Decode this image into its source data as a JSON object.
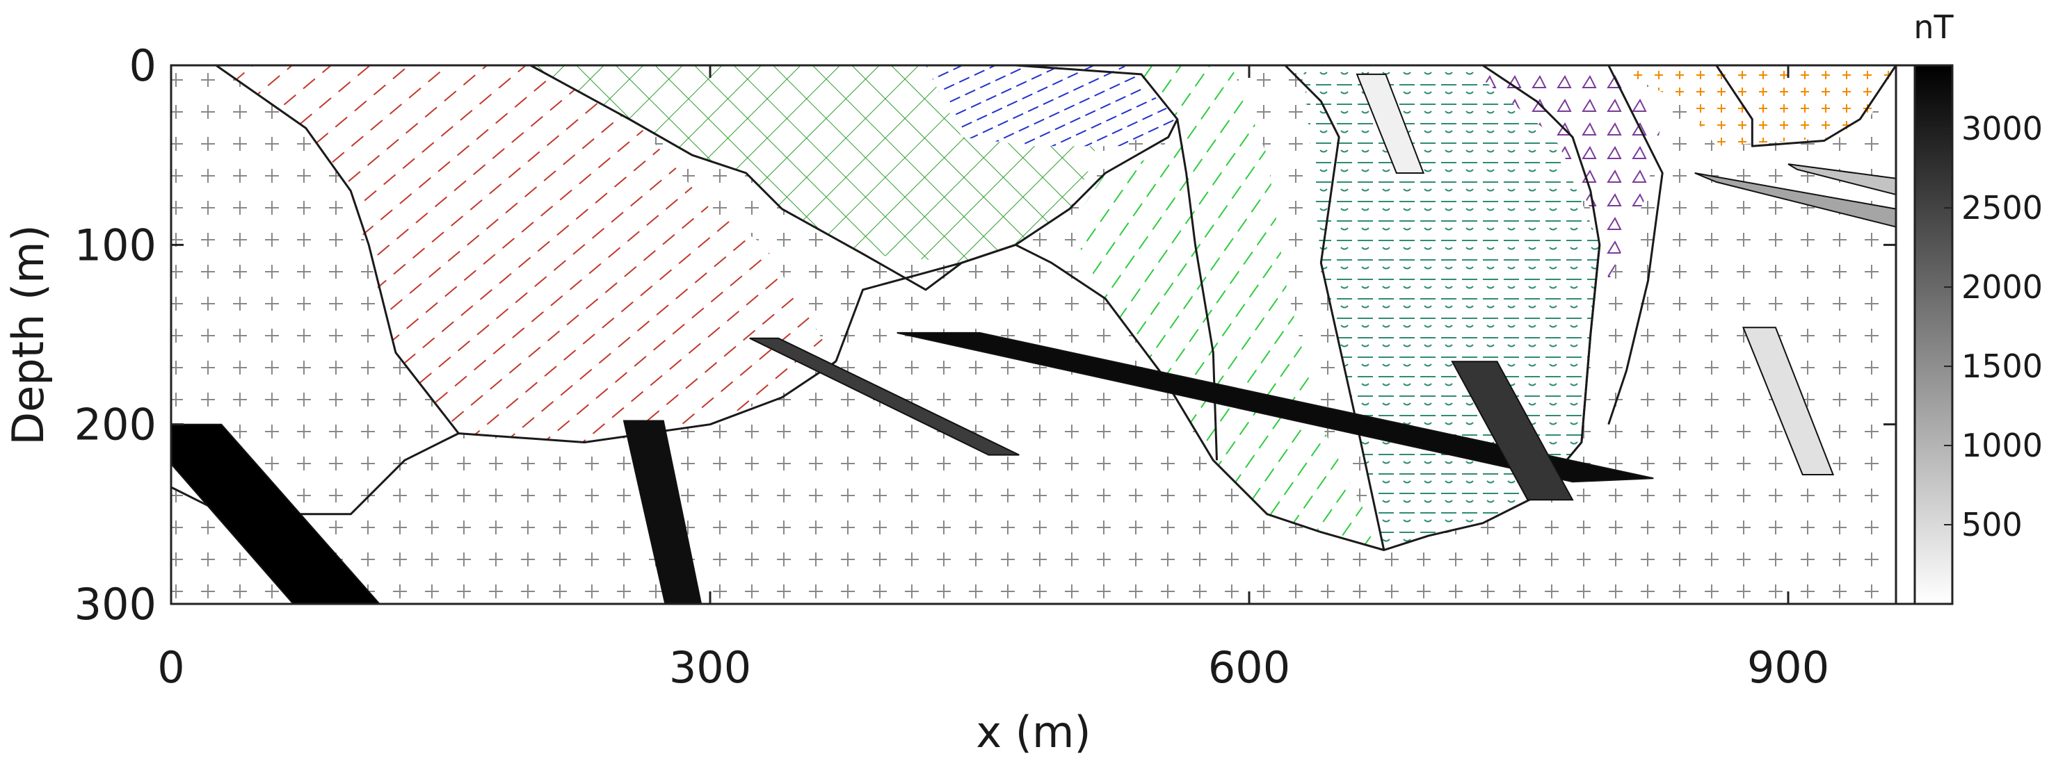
{
  "chart_data": {
    "type": "cross-section",
    "xlabel": "x (m)",
    "ylabel": "Depth (m)",
    "xlim": [
      0,
      960
    ],
    "ylim": [
      0,
      300
    ],
    "y_inverted": true,
    "x_ticks": [
      "0",
      "300",
      "600",
      "900"
    ],
    "y_ticks": [
      "0",
      "100",
      "200",
      "300"
    ],
    "colorbar": {
      "unit": "nT",
      "range": [
        0,
        3400
      ],
      "ticks": [
        "500",
        "1000",
        "1500",
        "2000",
        "2500",
        "3000"
      ],
      "colormap": "white-to-black"
    },
    "background_pattern": "plus",
    "regions": [
      {
        "pattern": "red-dash",
        "color": "#c0392b",
        "outline": [
          [
            25,
            0
          ],
          [
            75,
            35
          ],
          [
            100,
            70
          ],
          [
            125,
            160
          ],
          [
            160,
            205
          ],
          [
            230,
            210
          ],
          [
            300,
            200
          ],
          [
            370,
            165
          ],
          [
            330,
            100
          ],
          [
            300,
            80
          ],
          [
            275,
            50
          ],
          [
            230,
            0
          ]
        ]
      },
      {
        "pattern": "green-cross",
        "color": "#2e9e2e",
        "outline": [
          [
            200,
            0
          ],
          [
            255,
            30
          ],
          [
            290,
            50
          ],
          [
            320,
            60
          ],
          [
            340,
            80
          ],
          [
            385,
            105
          ],
          [
            440,
            110
          ],
          [
            470,
            100
          ],
          [
            500,
            80
          ],
          [
            510,
            60
          ],
          [
            520,
            30
          ],
          [
            470,
            0
          ]
        ]
      },
      {
        "pattern": "blue-dash",
        "color": "#2233cc",
        "outline": [
          [
            420,
            0
          ],
          [
            540,
            0
          ],
          [
            560,
            30
          ],
          [
            530,
            45
          ],
          [
            480,
            45
          ],
          [
            440,
            40
          ]
        ]
      },
      {
        "pattern": "green-dash",
        "color": "#2ecc40",
        "outline": [
          [
            530,
            0
          ],
          [
            590,
            0
          ],
          [
            610,
            50
          ],
          [
            620,
            120
          ],
          [
            640,
            200
          ],
          [
            675,
            270
          ],
          [
            610,
            250
          ],
          [
            580,
            220
          ],
          [
            550,
            170
          ],
          [
            520,
            130
          ],
          [
            500,
            90
          ],
          [
            520,
            60
          ],
          [
            550,
            50
          ],
          [
            560,
            30
          ]
        ]
      },
      {
        "pattern": "teal-dash",
        "color": "#2e8b74",
        "outline": [
          [
            630,
            0
          ],
          [
            730,
            0
          ],
          [
            770,
            40
          ],
          [
            795,
            100
          ],
          [
            790,
            150
          ],
          [
            785,
            210
          ],
          [
            760,
            240
          ],
          [
            730,
            255
          ],
          [
            675,
            270
          ],
          [
            660,
            200
          ],
          [
            640,
            110
          ]
        ]
      },
      {
        "pattern": "purple-triangle",
        "color": "#7a3a9a",
        "outline": [
          [
            720,
            0
          ],
          [
            800,
            0
          ],
          [
            830,
            30
          ],
          [
            820,
            75
          ],
          [
            800,
            120
          ],
          [
            795,
            90
          ],
          [
            770,
            40
          ]
        ]
      },
      {
        "pattern": "orange-plus",
        "color": "#f08a00",
        "outline": [
          [
            800,
            0
          ],
          [
            960,
            0
          ],
          [
            945,
            30
          ],
          [
            930,
            40
          ],
          [
            860,
            45
          ],
          [
            840,
            20
          ]
        ]
      }
    ],
    "boundaries": [
      [
        [
          25,
          0
        ],
        [
          75,
          35
        ],
        [
          100,
          70
        ],
        [
          110,
          100
        ],
        [
          125,
          160
        ],
        [
          160,
          205
        ],
        [
          230,
          210
        ],
        [
          300,
          200
        ],
        [
          340,
          185
        ],
        [
          370,
          165
        ]
      ],
      [
        [
          0,
          235
        ],
        [
          30,
          250
        ],
        [
          100,
          250
        ],
        [
          130,
          220
        ],
        [
          160,
          205
        ]
      ],
      [
        [
          200,
          0
        ],
        [
          255,
          30
        ],
        [
          290,
          50
        ],
        [
          320,
          60
        ],
        [
          340,
          80
        ],
        [
          385,
          105
        ],
        [
          420,
          125
        ],
        [
          440,
          110
        ],
        [
          470,
          100
        ],
        [
          500,
          80
        ],
        [
          520,
          60
        ],
        [
          555,
          40
        ],
        [
          560,
          30
        ],
        [
          540,
          5
        ],
        [
          470,
          0
        ]
      ],
      [
        [
          370,
          165
        ],
        [
          385,
          125
        ],
        [
          440,
          110
        ],
        [
          470,
          100
        ],
        [
          490,
          110
        ],
        [
          520,
          130
        ],
        [
          550,
          170
        ],
        [
          580,
          220
        ],
        [
          610,
          250
        ],
        [
          640,
          260
        ],
        [
          675,
          270
        ],
        [
          700,
          262
        ],
        [
          730,
          255
        ],
        [
          760,
          240
        ],
        [
          785,
          210
        ],
        [
          790,
          150
        ],
        [
          795,
          100
        ]
      ],
      [
        [
          560,
          30
        ],
        [
          565,
          60
        ],
        [
          570,
          100
        ],
        [
          580,
          160
        ],
        [
          582,
          220
        ]
      ],
      [
        [
          620,
          0
        ],
        [
          640,
          20
        ],
        [
          650,
          40
        ],
        [
          640,
          110
        ],
        [
          660,
          200
        ],
        [
          675,
          270
        ]
      ],
      [
        [
          730,
          0
        ],
        [
          760,
          20
        ],
        [
          780,
          40
        ],
        [
          790,
          70
        ],
        [
          795,
          100
        ],
        [
          790,
          150
        ],
        [
          785,
          210
        ]
      ],
      [
        [
          800,
          0
        ],
        [
          815,
          30
        ],
        [
          830,
          60
        ],
        [
          822,
          120
        ],
        [
          810,
          170
        ],
        [
          800,
          200
        ]
      ],
      [
        [
          860,
          0
        ],
        [
          870,
          15
        ],
        [
          880,
          30
        ],
        [
          880,
          45
        ],
        [
          920,
          42
        ],
        [
          940,
          30
        ],
        [
          960,
          0
        ]
      ]
    ],
    "bodies": [
      {
        "polygon": [
          [
            0,
            200
          ],
          [
            28,
            200
          ],
          [
            116,
            300
          ],
          [
            68,
            300
          ],
          [
            0,
            222
          ]
        ],
        "magnetization_nT": 3400
      },
      {
        "polygon": [
          [
            252,
            198
          ],
          [
            274,
            198
          ],
          [
            295,
            300
          ],
          [
            275,
            300
          ]
        ],
        "magnetization_nT": 3200
      },
      {
        "polygon": [
          [
            322,
            152
          ],
          [
            338,
            152
          ],
          [
            472,
            217
          ],
          [
            455,
            217
          ]
        ],
        "magnetization_nT": 2600
      },
      {
        "polygon": [
          [
            404,
            149
          ],
          [
            450,
            149
          ],
          [
            825,
            230
          ],
          [
            780,
            232
          ]
        ],
        "magnetization_nT": 3250
      },
      {
        "polygon": [
          [
            713,
            165
          ],
          [
            738,
            165
          ],
          [
            780,
            242
          ],
          [
            755,
            242
          ]
        ],
        "magnetization_nT": 2700
      },
      {
        "polygon": [
          [
            660,
            5
          ],
          [
            676,
            5
          ],
          [
            697,
            60
          ],
          [
            682,
            60
          ]
        ],
        "magnetization_nT": 200
      },
      {
        "polygon": [
          [
            848,
            60
          ],
          [
            960,
            80
          ],
          [
            960,
            90
          ],
          [
            860,
            65
          ]
        ],
        "magnetization_nT": 1200
      },
      {
        "polygon": [
          [
            900,
            55
          ],
          [
            960,
            63
          ],
          [
            960,
            72
          ],
          [
            905,
            58
          ]
        ],
        "magnetization_nT": 800
      },
      {
        "polygon": [
          [
            875,
            146
          ],
          [
            893,
            146
          ],
          [
            925,
            228
          ],
          [
            908,
            228
          ]
        ],
        "magnetization_nT": 400
      }
    ]
  }
}
